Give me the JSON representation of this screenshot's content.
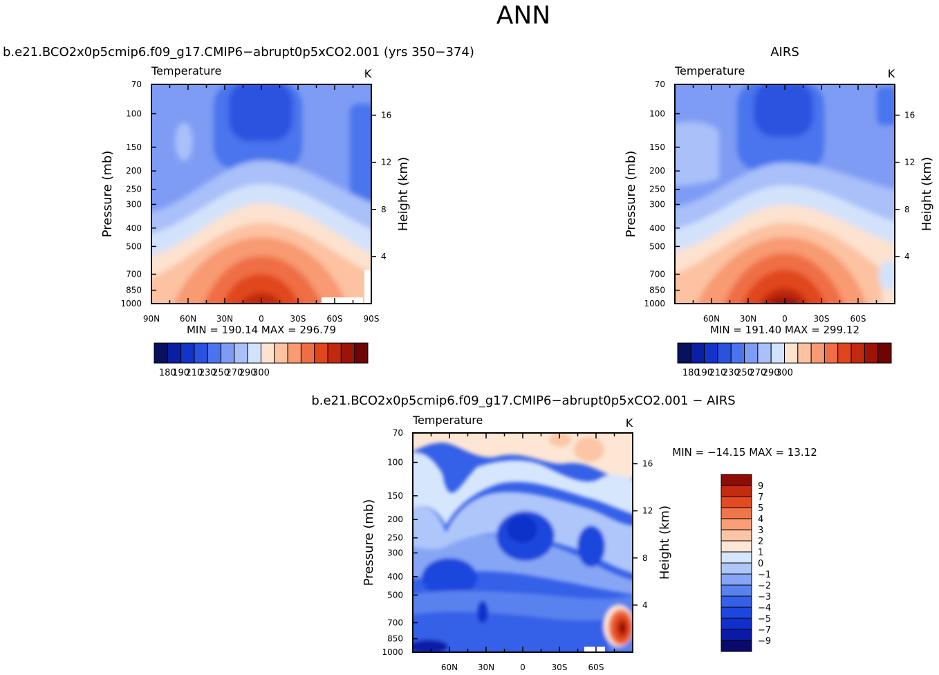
{
  "page_title": "ANN",
  "colors": {
    "temp_scale": [
      "#08115e",
      "#0a1fa3",
      "#1234c8",
      "#2a52e0",
      "#4a74ee",
      "#7e9cf4",
      "#a9c0f9",
      "#d3e2fb",
      "#fde2cf",
      "#fcc2a2",
      "#f89a72",
      "#ef6e45",
      "#e0461e",
      "#c0290e",
      "#9a1409",
      "#6e0505"
    ],
    "diff_scale": [
      "#0a0a6b",
      "#0b1aa6",
      "#1130c9",
      "#1f46dd",
      "#3560e8",
      "#5a82ef",
      "#86a6f5",
      "#aec6f9",
      "#d6e6fc",
      "#fde6d4",
      "#fcc6a6",
      "#f99e76",
      "#f0754b",
      "#e34a22",
      "#c52c0f",
      "#8e0c06"
    ]
  },
  "chart_data": [
    {
      "type": "heatmap",
      "id": "panel-model",
      "title": "b.e21.BCO2x0p5cmip6.f09_g17.CMIP6−abrupt0p5xCO2.001  (yrs  350−374)",
      "variable": "Temperature",
      "units": "K",
      "ylabel": "Pressure  (mb)",
      "y2label": "Height  (km)",
      "pressure_ticks": [
        "70",
        "100",
        "150",
        "200",
        "250",
        "300",
        "400",
        "500",
        "700",
        "850",
        "1000"
      ],
      "height_ticks": [
        "16",
        "12",
        "8",
        "4"
      ],
      "lat_ticks": [
        "90N",
        "60N",
        "30N",
        "0",
        "30S",
        "60S",
        "90S"
      ],
      "stats": "MIN  =  190.14    MAX  =  296.79",
      "colorbar_labels": [
        "180",
        "190",
        "210",
        "230",
        "250",
        "270",
        "290",
        "300"
      ]
    },
    {
      "type": "heatmap",
      "id": "panel-obs",
      "title": "AIRS",
      "variable": "Temperature",
      "units": "K",
      "ylabel": "Pressure  (mb)",
      "y2label": "Height  (km)",
      "pressure_ticks": [
        "70",
        "100",
        "150",
        "200",
        "250",
        "300",
        "400",
        "500",
        "700",
        "850",
        "1000"
      ],
      "height_ticks": [
        "16",
        "12",
        "8",
        "4"
      ],
      "lat_ticks": [
        "60N",
        "30N",
        "0",
        "30S",
        "60S"
      ],
      "stats": "MIN  =  191.40    MAX  =  299.12",
      "colorbar_labels": [
        "180",
        "190",
        "210",
        "230",
        "250",
        "270",
        "290",
        "300"
      ]
    },
    {
      "type": "heatmap",
      "id": "panel-diff",
      "title": "b.e21.BCO2x0p5cmip6.f09_g17.CMIP6−abrupt0p5xCO2.001  −  AIRS",
      "variable": "Temperature",
      "units": "K",
      "ylabel": "Pressure  (mb)",
      "y2label": "Height  (km)",
      "pressure_ticks": [
        "70",
        "100",
        "150",
        "200",
        "250",
        "300",
        "400",
        "500",
        "700",
        "850",
        "1000"
      ],
      "height_ticks": [
        "16",
        "12",
        "8",
        "4"
      ],
      "lat_ticks": [
        "60N",
        "30N",
        "0",
        "30S",
        "60S"
      ],
      "stats": "MIN  =  −14.15    MAX  =    13.12",
      "colorbar_labels": [
        "9",
        "7",
        "5",
        "4",
        "3",
        "2",
        "1",
        "0",
        "−1",
        "−2",
        "−3",
        "−4",
        "−5",
        "−7",
        "−9"
      ]
    }
  ]
}
